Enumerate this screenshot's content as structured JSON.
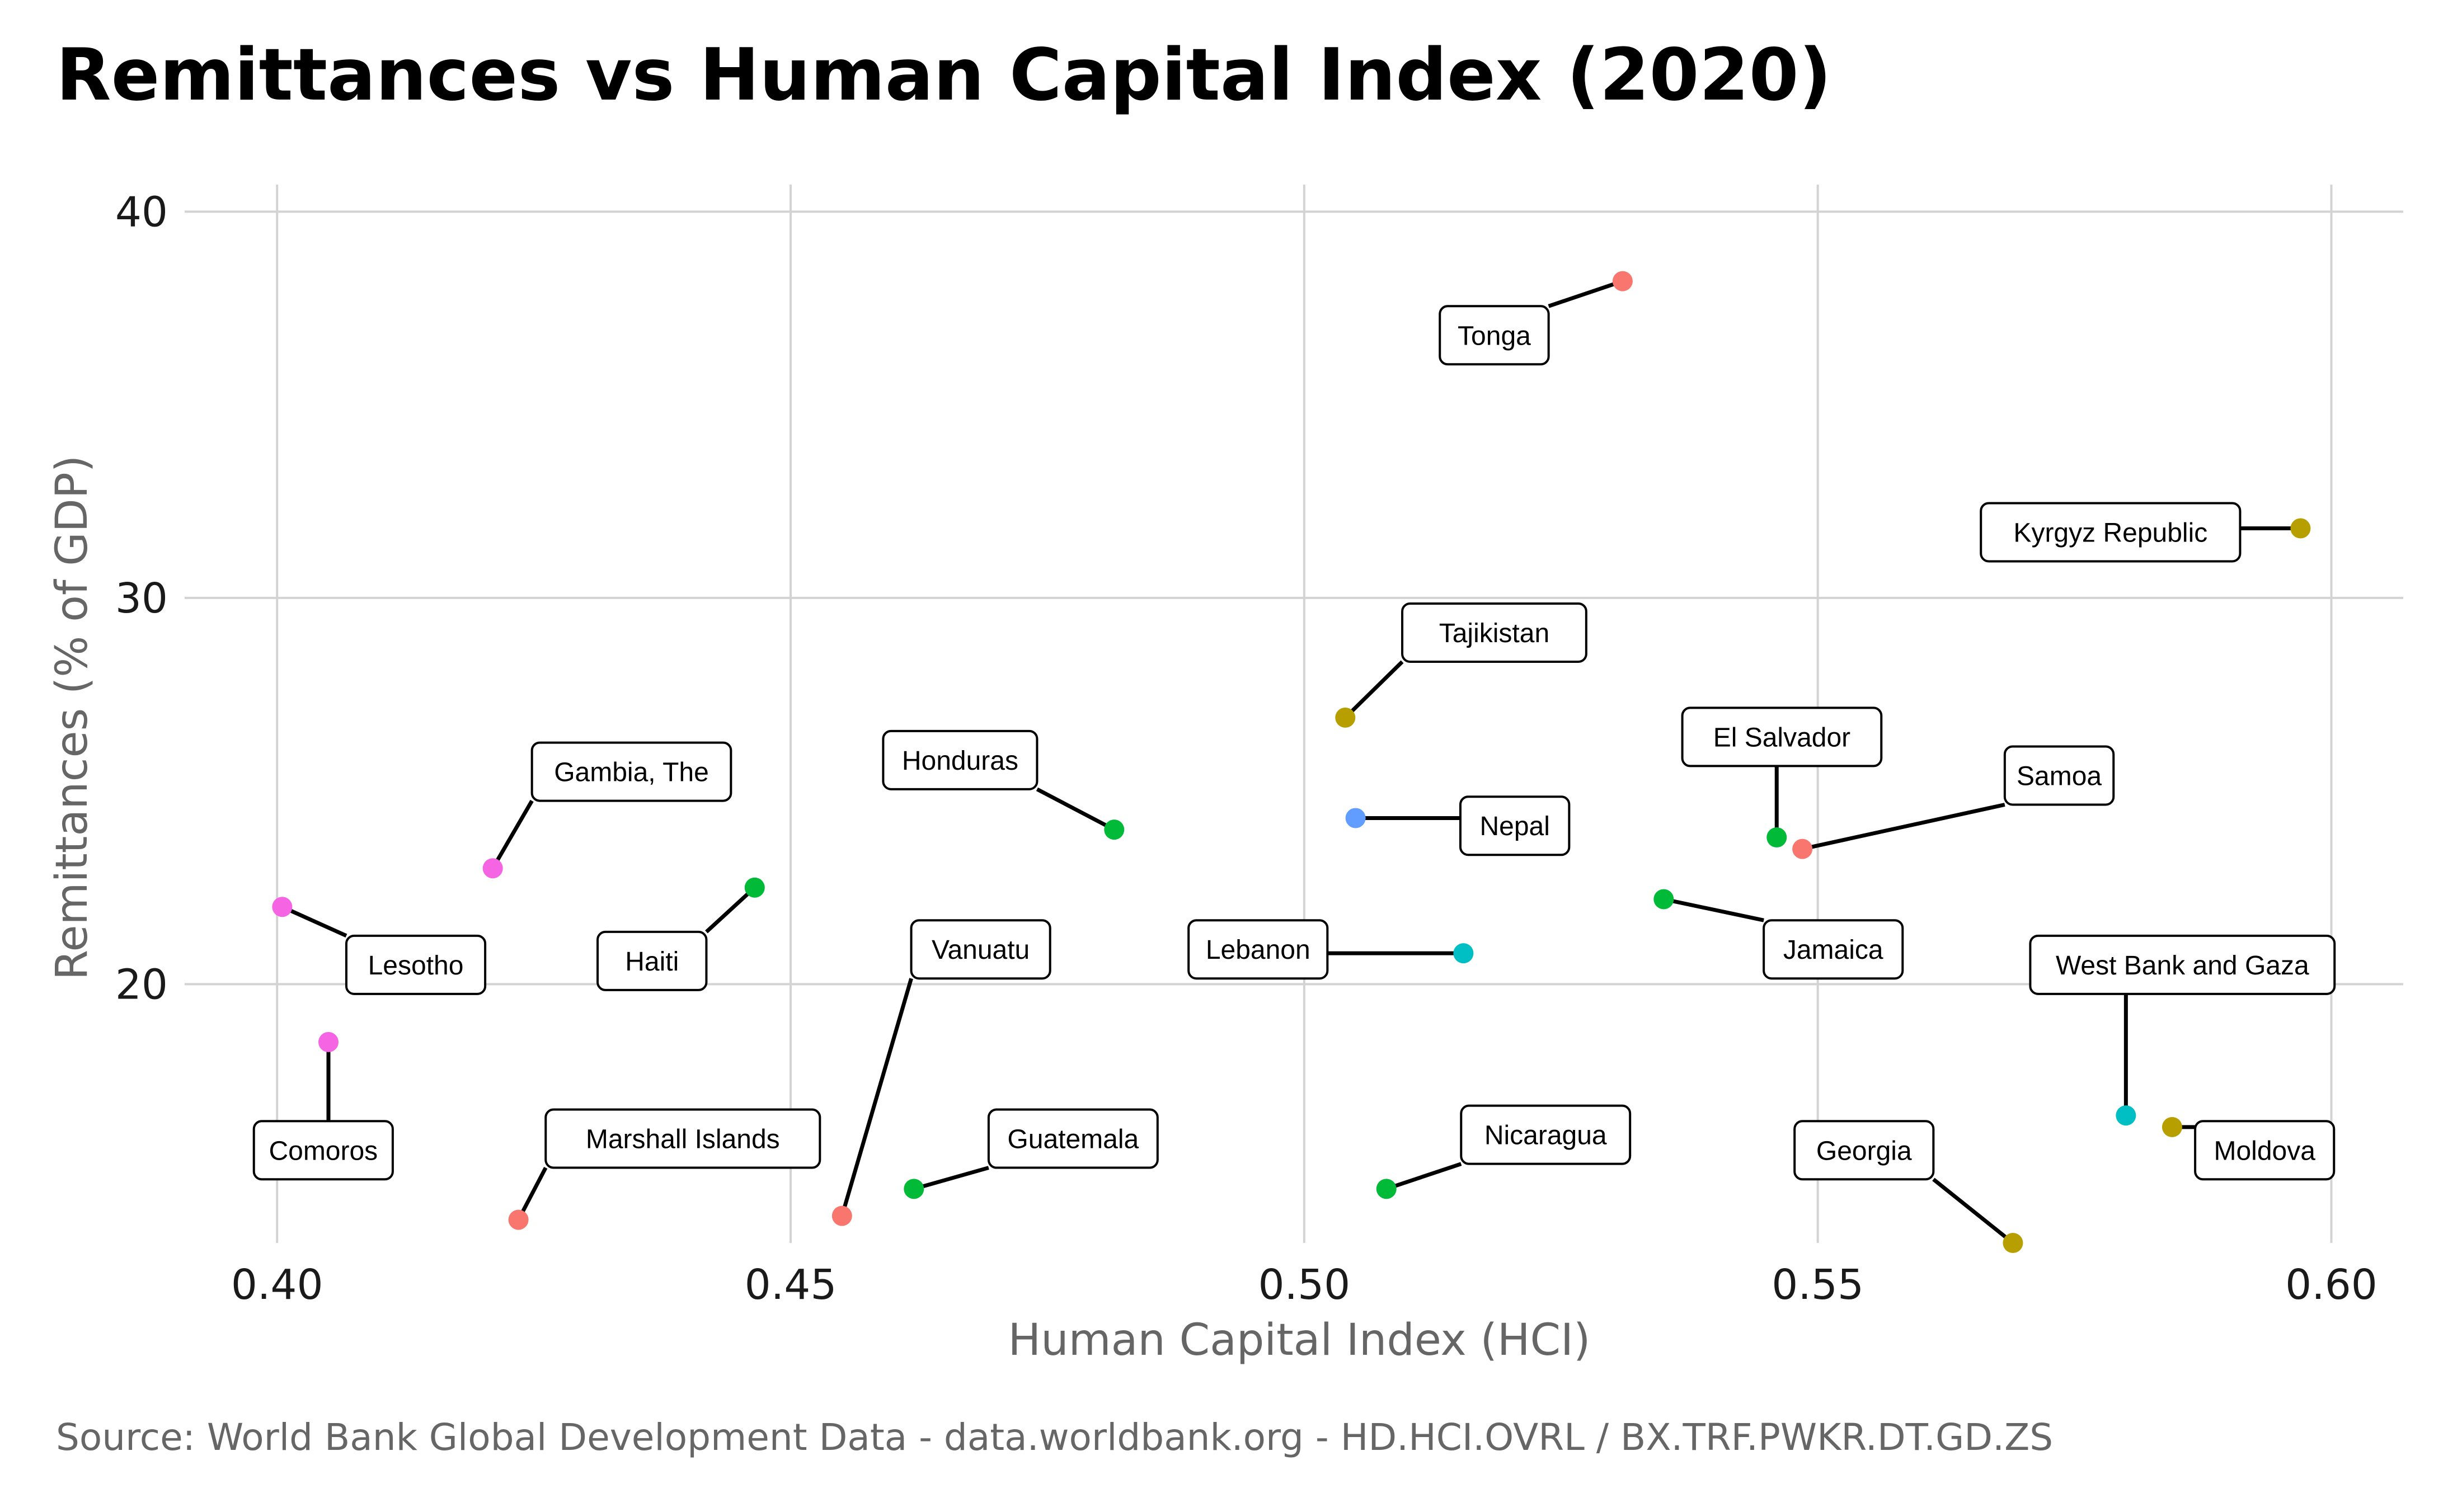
{
  "chart_data": {
    "type": "scatter",
    "title": "Remittances vs Human Capital Index (2020)",
    "xlabel": "Human Capital Index (HCI)",
    "ylabel": "Remittances (% of GDP)",
    "caption": "Source: World Bank Global Development Data - data.worldbank.org - HD.HCI.OVRL / BX.TRF.PWKR.DT.GD.ZS",
    "xlim": [
      0.391,
      0.607
    ],
    "ylim": [
      13.3,
      40.7
    ],
    "x_ticks": [
      {
        "value": 0.4,
        "label": "0.40"
      },
      {
        "value": 0.45,
        "label": "0.45"
      },
      {
        "value": 0.5,
        "label": "0.50"
      },
      {
        "value": 0.55,
        "label": "0.55"
      },
      {
        "value": 0.6,
        "label": "0.60"
      }
    ],
    "y_ticks": [
      {
        "value": 20,
        "label": "20"
      },
      {
        "value": 30,
        "label": "30"
      },
      {
        "value": 40,
        "label": "40"
      }
    ],
    "grid": true,
    "legend": "none",
    "points": [
      {
        "label": "Tonga",
        "x": 0.531,
        "y": 38.2,
        "color": "#F8766D",
        "label_x": 0.5185,
        "label_y": 36.8
      },
      {
        "label": "Kyrgyz Republic",
        "x": 0.597,
        "y": 31.8,
        "color": "#B79F00",
        "label_x": 0.5785,
        "label_y": 31.7
      },
      {
        "label": "Tajikistan",
        "x": 0.504,
        "y": 26.9,
        "color": "#B79F00",
        "label_x": 0.5185,
        "label_y": 29.1
      },
      {
        "label": "Honduras",
        "x": 0.4815,
        "y": 24.0,
        "color": "#00BA38",
        "label_x": 0.4665,
        "label_y": 25.8
      },
      {
        "label": "Gambia, The",
        "x": 0.421,
        "y": 23.0,
        "color": "#F564E3",
        "label_x": 0.4345,
        "label_y": 25.5
      },
      {
        "label": "Nepal",
        "x": 0.505,
        "y": 24.3,
        "color": "#619CFF",
        "label_x": 0.5205,
        "label_y": 24.1
      },
      {
        "label": "El Salvador",
        "x": 0.546,
        "y": 23.8,
        "color": "#00BA38",
        "label_x": 0.5465,
        "label_y": 26.4
      },
      {
        "label": "Samoa",
        "x": 0.5485,
        "y": 23.5,
        "color": "#F8766D",
        "label_x": 0.5735,
        "label_y": 25.4
      },
      {
        "label": "Jamaica",
        "x": 0.535,
        "y": 22.2,
        "color": "#00BA38",
        "label_x": 0.5515,
        "label_y": 20.9
      },
      {
        "label": "Haiti",
        "x": 0.4465,
        "y": 22.5,
        "color": "#00BA38",
        "label_x": 0.4365,
        "label_y": 20.6
      },
      {
        "label": "Lesotho",
        "x": 0.4005,
        "y": 22.0,
        "color": "#F564E3",
        "label_x": 0.4135,
        "label_y": 20.5
      },
      {
        "label": "Vanuatu",
        "x": 0.455,
        "y": 14.0,
        "color": "#F8766D",
        "label_x": 0.4685,
        "label_y": 20.9
      },
      {
        "label": "Lebanon",
        "x": 0.5155,
        "y": 20.8,
        "color": "#00BFC4",
        "label_x": 0.4955,
        "label_y": 20.9
      },
      {
        "label": "West Bank and Gaza",
        "x": 0.58,
        "y": 16.6,
        "color": "#00BFC4",
        "label_x": 0.5855,
        "label_y": 20.5
      },
      {
        "label": "Comoros",
        "x": 0.405,
        "y": 18.5,
        "color": "#F564E3",
        "label_x": 0.4045,
        "label_y": 15.7
      },
      {
        "label": "Marshall Islands",
        "x": 0.4235,
        "y": 13.9,
        "color": "#F8766D",
        "label_x": 0.4395,
        "label_y": 16.0
      },
      {
        "label": "Guatemala",
        "x": 0.462,
        "y": 14.7,
        "color": "#00BA38",
        "label_x": 0.4775,
        "label_y": 16.0
      },
      {
        "label": "Nicaragua",
        "x": 0.508,
        "y": 14.7,
        "color": "#00BA38",
        "label_x": 0.5235,
        "label_y": 16.1
      },
      {
        "label": "Georgia",
        "x": 0.569,
        "y": 13.3,
        "color": "#B79F00",
        "label_x": 0.5545,
        "label_y": 15.7
      },
      {
        "label": "Moldova",
        "x": 0.5845,
        "y": 16.3,
        "color": "#B79F00",
        "label_x": 0.5935,
        "label_y": 15.7
      }
    ]
  }
}
